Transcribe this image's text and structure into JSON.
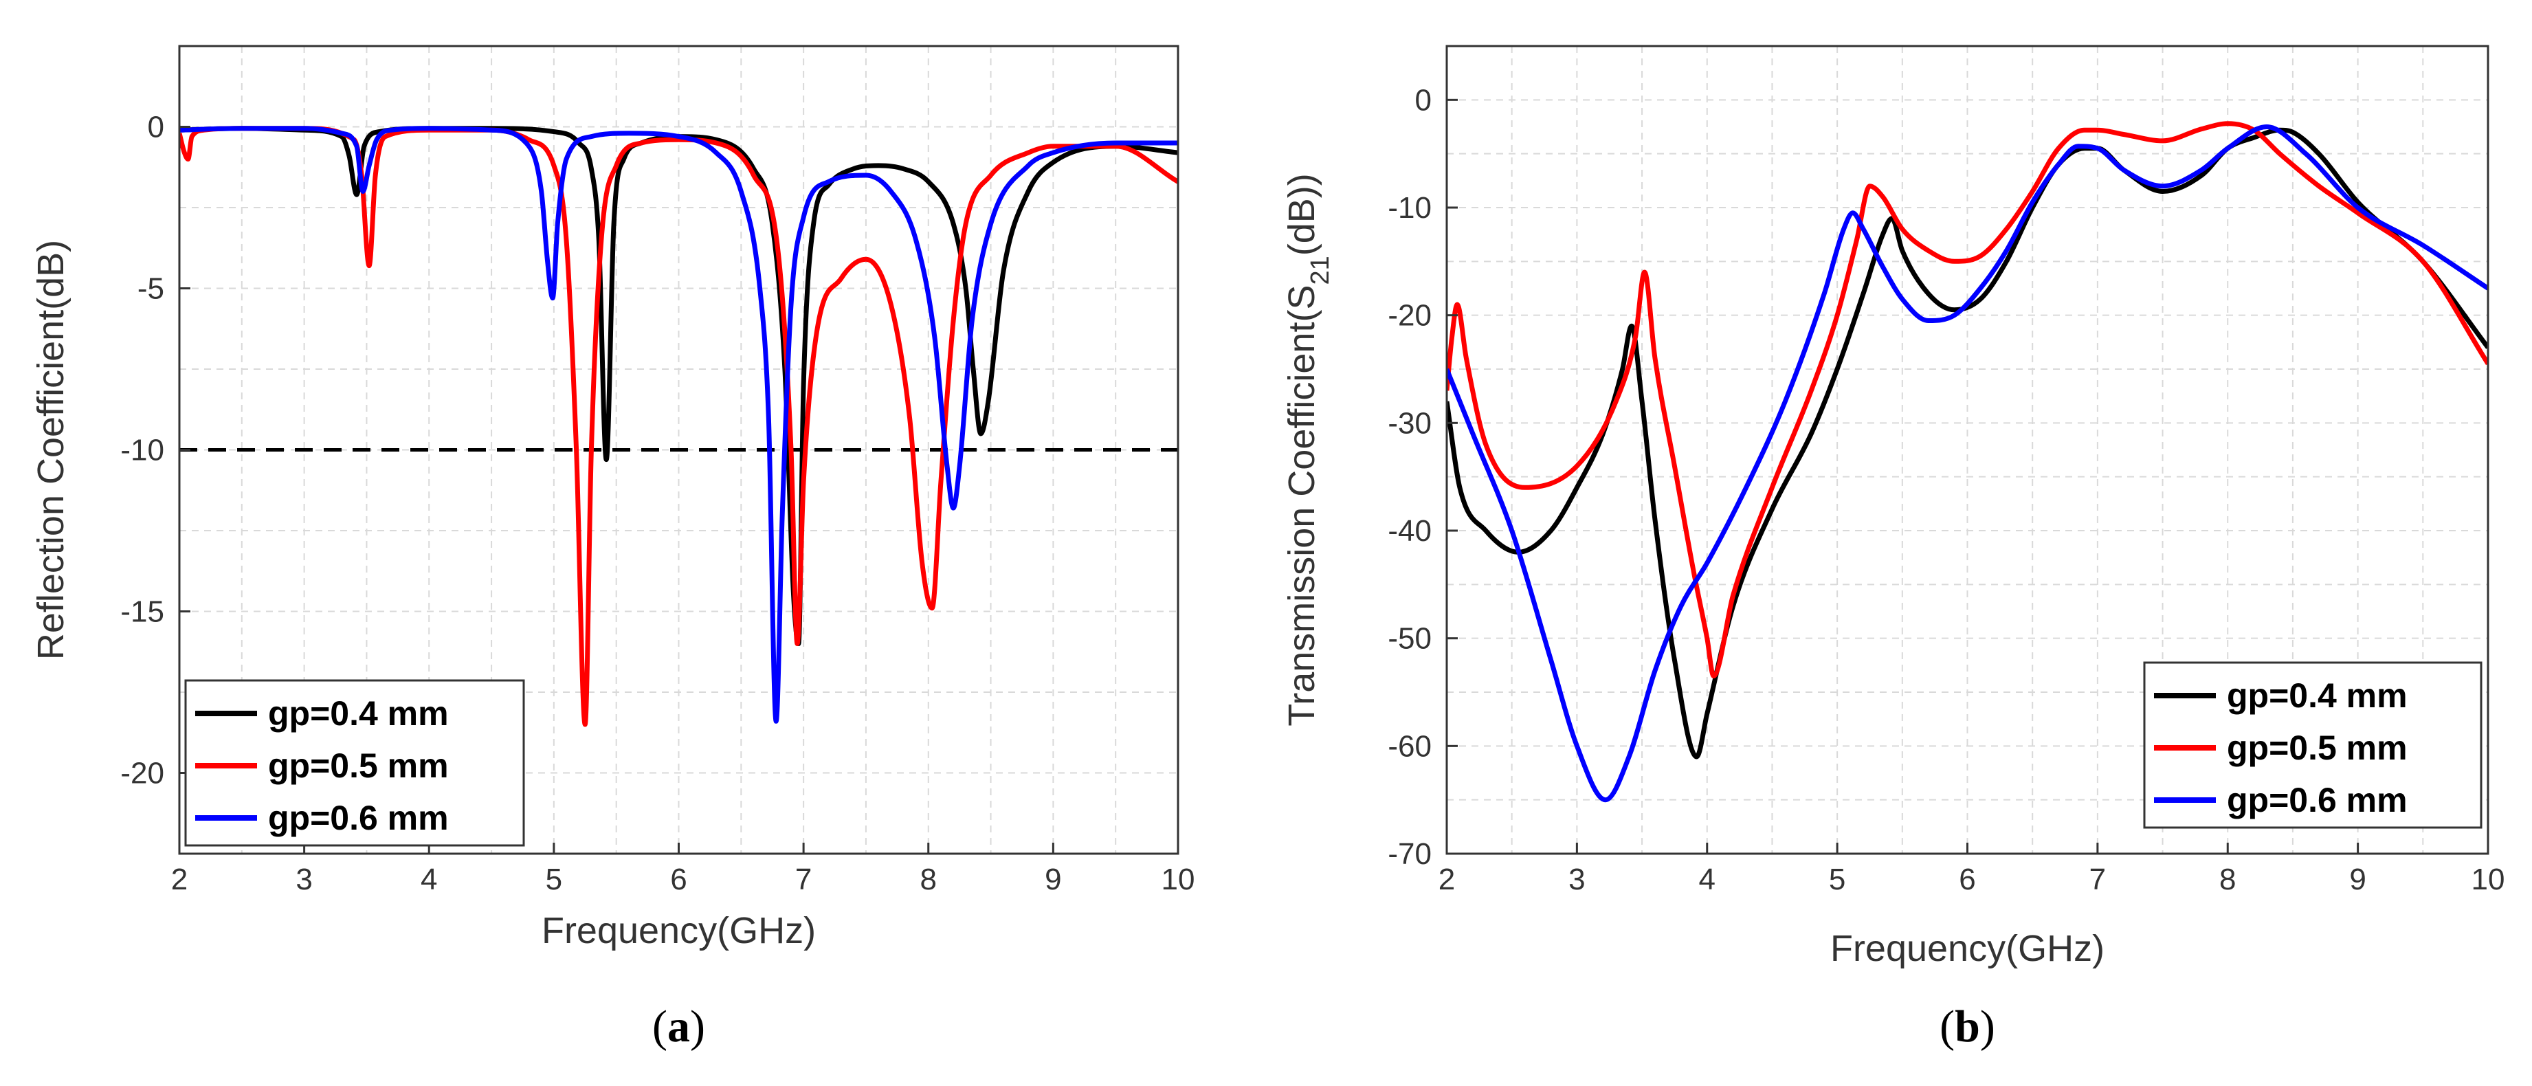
{
  "chart_data": [
    {
      "type": "line",
      "panel_label": "a",
      "xlabel": "Frequency(GHz)",
      "ylabel": "Reflection Coefficient(dB)",
      "xlim": [
        2,
        10
      ],
      "ylim": [
        -22.5,
        2.5
      ],
      "xticks": [
        2,
        3,
        4,
        5,
        6,
        7,
        8,
        9,
        10
      ],
      "yticks": [
        0,
        -5,
        -10,
        -15,
        -20
      ],
      "grid": true,
      "legend_position": "bottom-left",
      "reference_line": {
        "y": -10,
        "style": "dashed",
        "color": "#000000"
      },
      "series": [
        {
          "name": "gp=0.4 mm",
          "color": "#000000",
          "x": [
            2.0,
            2.5,
            3.0,
            3.3,
            3.36,
            3.42,
            3.48,
            3.6,
            4.0,
            4.5,
            5.0,
            5.2,
            5.3,
            5.36,
            5.42,
            5.48,
            5.56,
            5.7,
            6.0,
            6.3,
            6.6,
            6.75,
            6.85,
            6.92,
            6.96,
            7.0,
            7.08,
            7.2,
            7.4,
            7.6,
            7.8,
            8.0,
            8.2,
            8.3,
            8.36,
            8.42,
            8.48,
            8.6,
            8.8,
            9.0,
            9.5,
            10.0
          ],
          "y": [
            -0.1,
            -0.05,
            -0.1,
            -0.3,
            -0.9,
            -2.1,
            -0.6,
            -0.15,
            -0.05,
            -0.05,
            -0.15,
            -0.5,
            -1.3,
            -3.5,
            -10.3,
            -3.0,
            -1.0,
            -0.5,
            -0.3,
            -0.4,
            -1.3,
            -3.0,
            -7.5,
            -14.5,
            -16.0,
            -8.0,
            -3.0,
            -1.8,
            -1.3,
            -1.2,
            -1.3,
            -1.7,
            -3.0,
            -5.0,
            -7.5,
            -9.5,
            -8.5,
            -4.5,
            -2.0,
            -1.1,
            -0.6,
            -0.8
          ]
        },
        {
          "name": "gp=0.5 mm",
          "color": "#ff0000",
          "x": [
            2.0,
            2.04,
            2.07,
            2.1,
            2.2,
            2.5,
            3.0,
            3.4,
            3.46,
            3.52,
            3.57,
            3.65,
            4.0,
            4.5,
            4.8,
            5.0,
            5.1,
            5.18,
            5.25,
            5.3,
            5.38,
            5.5,
            5.7,
            6.0,
            6.3,
            6.6,
            6.8,
            6.9,
            6.95,
            7.0,
            7.1,
            7.3,
            7.5,
            7.7,
            7.85,
            7.95,
            8.03,
            8.1,
            8.2,
            8.3,
            8.5,
            8.8,
            9.0,
            9.5,
            10.0
          ],
          "y": [
            -0.2,
            -0.8,
            -1.0,
            -0.3,
            -0.1,
            -0.05,
            -0.05,
            -0.4,
            -1.5,
            -4.3,
            -1.5,
            -0.3,
            -0.1,
            -0.1,
            -0.4,
            -1.2,
            -3.5,
            -10.0,
            -18.5,
            -10.0,
            -3.5,
            -1.2,
            -0.5,
            -0.4,
            -0.5,
            -1.5,
            -4.0,
            -10.0,
            -16.0,
            -11.0,
            -6.5,
            -4.7,
            -4.1,
            -5.5,
            -9.0,
            -13.5,
            -14.9,
            -11.0,
            -6.0,
            -3.0,
            -1.5,
            -0.8,
            -0.6,
            -0.6,
            -1.7
          ]
        },
        {
          "name": "gp=0.6 mm",
          "color": "#0000ff",
          "x": [
            2.0,
            2.5,
            3.0,
            3.3,
            3.42,
            3.47,
            3.52,
            3.58,
            3.7,
            4.0,
            4.5,
            4.8,
            4.9,
            4.95,
            4.99,
            5.03,
            5.1,
            5.3,
            5.6,
            6.0,
            6.3,
            6.5,
            6.65,
            6.72,
            6.78,
            6.83,
            6.9,
            7.0,
            7.2,
            7.5,
            7.7,
            7.9,
            8.05,
            8.15,
            8.2,
            8.25,
            8.35,
            8.5,
            8.8,
            9.0,
            9.5,
            10.0
          ],
          "y": [
            -0.1,
            -0.05,
            -0.05,
            -0.2,
            -0.6,
            -2.0,
            -1.2,
            -0.4,
            -0.1,
            -0.05,
            -0.1,
            -0.6,
            -2.0,
            -4.2,
            -5.3,
            -3.0,
            -1.0,
            -0.3,
            -0.2,
            -0.3,
            -0.8,
            -2.0,
            -5.0,
            -9.0,
            -18.4,
            -12.0,
            -5.5,
            -2.8,
            -1.7,
            -1.5,
            -2.0,
            -3.5,
            -6.5,
            -10.5,
            -11.8,
            -10.5,
            -6.0,
            -3.0,
            -1.2,
            -0.8,
            -0.5,
            -0.5
          ]
        }
      ]
    },
    {
      "type": "line",
      "panel_label": "b",
      "xlabel": "Frequency(GHz)",
      "ylabel": "Transmission Coefficient(S21(dB))",
      "xlim": [
        2,
        10
      ],
      "ylim": [
        -70,
        5
      ],
      "xticks": [
        2,
        3,
        4,
        5,
        6,
        7,
        8,
        9,
        10
      ],
      "yticks": [
        0,
        -10,
        -20,
        -30,
        -40,
        -50,
        -60,
        -70
      ],
      "grid": true,
      "legend_position": "bottom-right",
      "series": [
        {
          "name": "gp=0.4 mm",
          "color": "#000000",
          "x": [
            2.0,
            2.1,
            2.3,
            2.55,
            2.8,
            3.0,
            3.2,
            3.35,
            3.42,
            3.5,
            3.6,
            3.75,
            3.92,
            4.0,
            4.2,
            4.5,
            4.8,
            5.0,
            5.2,
            5.35,
            5.42,
            5.5,
            5.7,
            5.9,
            6.1,
            6.3,
            6.5,
            6.7,
            6.9,
            7.0,
            7.2,
            7.5,
            7.8,
            8.0,
            8.2,
            8.4,
            8.5,
            8.7,
            9.0,
            9.5,
            10.0
          ],
          "y": [
            -28,
            -36,
            -40,
            -42,
            -40,
            -36,
            -31,
            -25,
            -21,
            -28,
            -39,
            -52,
            -61,
            -57,
            -47,
            -38,
            -31,
            -25,
            -18,
            -12.5,
            -11,
            -14,
            -18,
            -19.5,
            -18.5,
            -15,
            -10,
            -6,
            -4.5,
            -4.5,
            -6.5,
            -8.5,
            -7,
            -4.5,
            -3.5,
            -2.8,
            -3.0,
            -5,
            -9.5,
            -15,
            -23
          ]
        },
        {
          "name": "gp=0.5 mm",
          "color": "#ff0000",
          "x": [
            2.0,
            2.04,
            2.08,
            2.15,
            2.3,
            2.6,
            3.0,
            3.3,
            3.45,
            3.52,
            3.6,
            3.75,
            3.9,
            4.0,
            4.05,
            4.2,
            4.5,
            4.8,
            5.0,
            5.15,
            5.25,
            5.35,
            5.5,
            5.7,
            5.9,
            6.1,
            6.3,
            6.5,
            6.7,
            6.9,
            7.0,
            7.2,
            7.5,
            7.8,
            8.0,
            8.2,
            8.4,
            8.7,
            9.0,
            9.5,
            10.0
          ],
          "y": [
            -27,
            -22,
            -19,
            -24,
            -32,
            -36,
            -34,
            -28,
            -22,
            -16,
            -24,
            -34,
            -44,
            -50,
            -53.5,
            -46,
            -36,
            -27,
            -20,
            -13,
            -8,
            -9,
            -12,
            -14,
            -15,
            -14.5,
            -12,
            -8.5,
            -4.5,
            -2.8,
            -2.8,
            -3.2,
            -3.8,
            -2.7,
            -2.2,
            -2.8,
            -5,
            -8,
            -10.5,
            -15,
            -24.5
          ]
        },
        {
          "name": "gp=0.6 mm",
          "color": "#0000ff",
          "x": [
            2.0,
            2.2,
            2.5,
            2.8,
            3.0,
            3.22,
            3.4,
            3.6,
            3.8,
            4.0,
            4.3,
            4.6,
            4.9,
            5.05,
            5.12,
            5.2,
            5.35,
            5.5,
            5.7,
            5.9,
            6.1,
            6.3,
            6.5,
            6.7,
            6.85,
            7.0,
            7.2,
            7.5,
            7.8,
            8.0,
            8.3,
            8.6,
            9.0,
            9.5,
            10.0
          ],
          "y": [
            -25,
            -31,
            -40,
            -52,
            -60,
            -65,
            -61,
            -53,
            -47,
            -43,
            -36,
            -28,
            -18,
            -12,
            -10.5,
            -12,
            -15.5,
            -18.5,
            -20.5,
            -20,
            -17.5,
            -14,
            -9.5,
            -6,
            -4.3,
            -4.5,
            -6.5,
            -8,
            -6.5,
            -4.5,
            -2.5,
            -5,
            -10,
            -13.5,
            -17.5
          ]
        }
      ]
    }
  ]
}
